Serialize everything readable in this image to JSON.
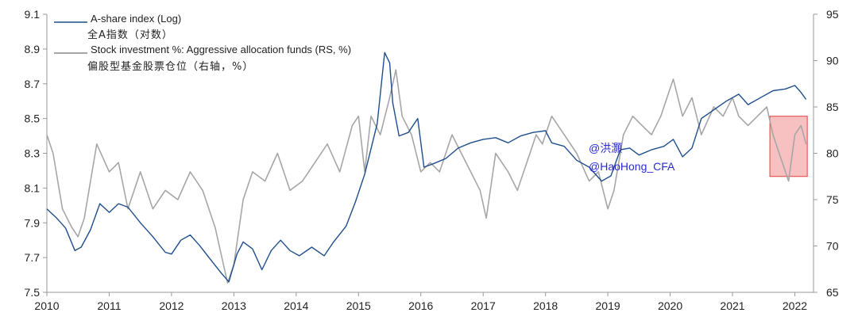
{
  "chart_data": {
    "type": "line",
    "x_range": [
      2010,
      2022.3
    ],
    "x_ticks": [
      "2010",
      "2011",
      "2012",
      "2013",
      "2014",
      "2015",
      "2016",
      "2017",
      "2018",
      "2019",
      "2020",
      "2021",
      "2022"
    ],
    "y_left": {
      "scale": "log",
      "range": [
        7.5,
        9.1
      ],
      "ticks": [
        "7.5",
        "7.7",
        "7.9",
        "8.1",
        "8.3",
        "8.5",
        "8.7",
        "8.9",
        "9.1"
      ]
    },
    "y_right": {
      "range": [
        65,
        95
      ],
      "ticks": [
        "65",
        "70",
        "75",
        "80",
        "85",
        "90",
        "95"
      ]
    },
    "grid": false,
    "legend_placement": "top-left",
    "colors": {
      "index": "#1f4e8c",
      "stock_pct": "#a6a6a6",
      "highlight_fill": "#f4a6a6",
      "highlight_stroke": "#e04040",
      "watermark": "#2a2ad8"
    },
    "series": [
      {
        "name": "A-share index (Log)",
        "name_cn": "全A指数（对数）",
        "axis": "left",
        "points": [
          [
            2010.0,
            7.98
          ],
          [
            2010.15,
            7.93
          ],
          [
            2010.3,
            7.87
          ],
          [
            2010.45,
            7.74
          ],
          [
            2010.55,
            7.76
          ],
          [
            2010.7,
            7.86
          ],
          [
            2010.85,
            8.01
          ],
          [
            2011.0,
            7.96
          ],
          [
            2011.15,
            8.01
          ],
          [
            2011.3,
            7.99
          ],
          [
            2011.5,
            7.9
          ],
          [
            2011.7,
            7.82
          ],
          [
            2011.9,
            7.73
          ],
          [
            2012.0,
            7.72
          ],
          [
            2012.15,
            7.8
          ],
          [
            2012.3,
            7.83
          ],
          [
            2012.45,
            7.77
          ],
          [
            2012.6,
            7.7
          ],
          [
            2012.8,
            7.61
          ],
          [
            2012.92,
            7.56
          ],
          [
            2013.05,
            7.72
          ],
          [
            2013.15,
            7.79
          ],
          [
            2013.3,
            7.75
          ],
          [
            2013.45,
            7.63
          ],
          [
            2013.6,
            7.74
          ],
          [
            2013.75,
            7.8
          ],
          [
            2013.9,
            7.74
          ],
          [
            2014.05,
            7.71
          ],
          [
            2014.25,
            7.76
          ],
          [
            2014.45,
            7.71
          ],
          [
            2014.6,
            7.79
          ],
          [
            2014.8,
            7.88
          ],
          [
            2014.95,
            8.02
          ],
          [
            2015.1,
            8.18
          ],
          [
            2015.3,
            8.47
          ],
          [
            2015.42,
            8.88
          ],
          [
            2015.5,
            8.82
          ],
          [
            2015.55,
            8.59
          ],
          [
            2015.65,
            8.4
          ],
          [
            2015.8,
            8.42
          ],
          [
            2015.95,
            8.5
          ],
          [
            2016.05,
            8.22
          ],
          [
            2016.2,
            8.24
          ],
          [
            2016.4,
            8.27
          ],
          [
            2016.6,
            8.33
          ],
          [
            2016.8,
            8.36
          ],
          [
            2017.0,
            8.38
          ],
          [
            2017.2,
            8.39
          ],
          [
            2017.4,
            8.36
          ],
          [
            2017.6,
            8.4
          ],
          [
            2017.8,
            8.42
          ],
          [
            2018.0,
            8.43
          ],
          [
            2018.1,
            8.36
          ],
          [
            2018.3,
            8.34
          ],
          [
            2018.5,
            8.26
          ],
          [
            2018.7,
            8.22
          ],
          [
            2018.9,
            8.14
          ],
          [
            2019.05,
            8.17
          ],
          [
            2019.2,
            8.32
          ],
          [
            2019.35,
            8.33
          ],
          [
            2019.5,
            8.29
          ],
          [
            2019.7,
            8.32
          ],
          [
            2019.9,
            8.34
          ],
          [
            2020.05,
            8.38
          ],
          [
            2020.2,
            8.28
          ],
          [
            2020.35,
            8.33
          ],
          [
            2020.5,
            8.5
          ],
          [
            2020.7,
            8.55
          ],
          [
            2020.9,
            8.6
          ],
          [
            2021.1,
            8.64
          ],
          [
            2021.25,
            8.58
          ],
          [
            2021.45,
            8.62
          ],
          [
            2021.65,
            8.66
          ],
          [
            2021.85,
            8.67
          ],
          [
            2022.0,
            8.69
          ],
          [
            2022.1,
            8.65
          ],
          [
            2022.18,
            8.61
          ]
        ]
      },
      {
        "name": "Stock investment %: Aggressive allocation funds (RS, %)",
        "name_cn": "偏股型基金股票仓位（右轴，%）",
        "axis": "right",
        "points": [
          [
            2010.0,
            82
          ],
          [
            2010.1,
            80
          ],
          [
            2010.25,
            74
          ],
          [
            2010.4,
            72
          ],
          [
            2010.5,
            71
          ],
          [
            2010.6,
            73
          ],
          [
            2010.8,
            81
          ],
          [
            2011.0,
            78
          ],
          [
            2011.15,
            79
          ],
          [
            2011.3,
            74
          ],
          [
            2011.5,
            78
          ],
          [
            2011.7,
            74
          ],
          [
            2011.9,
            76
          ],
          [
            2012.1,
            75
          ],
          [
            2012.3,
            78
          ],
          [
            2012.5,
            76
          ],
          [
            2012.7,
            72
          ],
          [
            2012.9,
            66
          ],
          [
            2013.0,
            68
          ],
          [
            2013.15,
            75
          ],
          [
            2013.3,
            78
          ],
          [
            2013.5,
            77
          ],
          [
            2013.7,
            80
          ],
          [
            2013.9,
            76
          ],
          [
            2014.1,
            77
          ],
          [
            2014.3,
            79
          ],
          [
            2014.5,
            81
          ],
          [
            2014.7,
            78
          ],
          [
            2014.9,
            83
          ],
          [
            2015.0,
            84
          ],
          [
            2015.1,
            78
          ],
          [
            2015.2,
            84
          ],
          [
            2015.35,
            82
          ],
          [
            2015.5,
            86
          ],
          [
            2015.6,
            89
          ],
          [
            2015.7,
            84
          ],
          [
            2015.85,
            82
          ],
          [
            2016.0,
            78
          ],
          [
            2016.15,
            79
          ],
          [
            2016.3,
            78
          ],
          [
            2016.5,
            82
          ],
          [
            2016.65,
            80
          ],
          [
            2016.8,
            78
          ],
          [
            2016.95,
            76
          ],
          [
            2017.05,
            73
          ],
          [
            2017.2,
            80
          ],
          [
            2017.4,
            78
          ],
          [
            2017.55,
            76
          ],
          [
            2017.7,
            79
          ],
          [
            2017.85,
            82
          ],
          [
            2017.95,
            81
          ],
          [
            2018.1,
            84
          ],
          [
            2018.3,
            82
          ],
          [
            2018.5,
            80
          ],
          [
            2018.7,
            77
          ],
          [
            2018.85,
            78
          ],
          [
            2019.0,
            74
          ],
          [
            2019.1,
            76
          ],
          [
            2019.25,
            82
          ],
          [
            2019.4,
            84
          ],
          [
            2019.55,
            83
          ],
          [
            2019.7,
            82
          ],
          [
            2019.85,
            84
          ],
          [
            2019.95,
            86
          ],
          [
            2020.05,
            88
          ],
          [
            2020.2,
            84
          ],
          [
            2020.35,
            86
          ],
          [
            2020.5,
            82
          ],
          [
            2020.7,
            85
          ],
          [
            2020.85,
            84
          ],
          [
            2021.0,
            86
          ],
          [
            2021.1,
            84
          ],
          [
            2021.25,
            83
          ],
          [
            2021.4,
            84
          ],
          [
            2021.55,
            85
          ],
          [
            2021.65,
            82
          ],
          [
            2021.75,
            80
          ],
          [
            2021.9,
            77
          ],
          [
            2022.0,
            82
          ],
          [
            2022.1,
            83
          ],
          [
            2022.18,
            81
          ]
        ]
      }
    ],
    "highlight": {
      "x_range": [
        2021.6,
        2022.2
      ],
      "y_right_range": [
        77.5,
        84.0
      ]
    },
    "watermarks": [
      "@洪灝",
      "@HaoHong_CFA"
    ]
  }
}
